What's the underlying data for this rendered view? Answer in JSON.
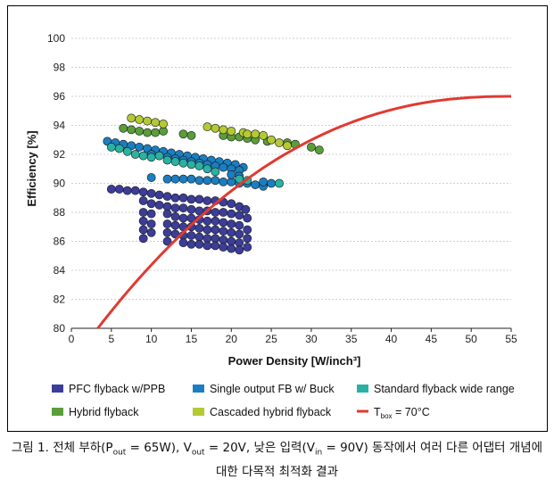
{
  "chart_data": {
    "type": "scatter",
    "xlabel": "Power Density [W/inch³]",
    "ylabel": "Efficiency [%]",
    "xlim": [
      0,
      55
    ],
    "ylim": [
      80,
      100
    ],
    "xticks": [
      0,
      5,
      10,
      15,
      20,
      25,
      30,
      35,
      40,
      45,
      50,
      55
    ],
    "yticks": [
      80,
      82,
      84,
      86,
      88,
      90,
      92,
      94,
      96,
      98,
      100
    ],
    "grid": "horizontal dotted",
    "legend_position": "bottom",
    "series": [
      {
        "name": "PFC flyback w/PPB",
        "color": "#3c3d99",
        "marker": "square",
        "points": [
          [
            5.0,
            89.6
          ],
          [
            6.0,
            89.6
          ],
          [
            7.0,
            89.5
          ],
          [
            8.0,
            89.5
          ],
          [
            9.0,
            89.4
          ],
          [
            10.0,
            89.3
          ],
          [
            11.0,
            89.2
          ],
          [
            12.0,
            89.1
          ],
          [
            13.0,
            89.0
          ],
          [
            14.0,
            89.0
          ],
          [
            15.0,
            88.9
          ],
          [
            16.0,
            88.9
          ],
          [
            17.0,
            88.8
          ],
          [
            18.0,
            88.8
          ],
          [
            19.0,
            88.7
          ],
          [
            20.0,
            88.6
          ],
          [
            21.0,
            88.4
          ],
          [
            21.8,
            88.2
          ],
          [
            9.0,
            88.8
          ],
          [
            10.0,
            88.6
          ],
          [
            11.0,
            88.5
          ],
          [
            12.0,
            88.4
          ],
          [
            13.0,
            88.3
          ],
          [
            14.0,
            88.3
          ],
          [
            15.0,
            88.2
          ],
          [
            16.0,
            88.1
          ],
          [
            17.0,
            88.1
          ],
          [
            18.0,
            88.0
          ],
          [
            19.0,
            88.0
          ],
          [
            20.0,
            87.9
          ],
          [
            21.0,
            87.8
          ],
          [
            22.0,
            87.6
          ],
          [
            9.0,
            88.0
          ],
          [
            9.0,
            87.4
          ],
          [
            9.0,
            86.8
          ],
          [
            9.0,
            86.2
          ],
          [
            10.0,
            87.9
          ],
          [
            10.0,
            87.2
          ],
          [
            10.0,
            86.6
          ],
          [
            12.0,
            87.9
          ],
          [
            12.0,
            87.2
          ],
          [
            12.0,
            86.6
          ],
          [
            12.0,
            86.0
          ],
          [
            13.0,
            87.7
          ],
          [
            13.0,
            87.1
          ],
          [
            13.0,
            86.5
          ],
          [
            14.0,
            87.6
          ],
          [
            14.0,
            87.0
          ],
          [
            14.0,
            86.4
          ],
          [
            14.0,
            85.9
          ],
          [
            15.0,
            87.6
          ],
          [
            15.0,
            87.0
          ],
          [
            15.0,
            86.4
          ],
          [
            15.0,
            85.8
          ],
          [
            16.0,
            87.5
          ],
          [
            16.0,
            86.9
          ],
          [
            16.0,
            86.3
          ],
          [
            16.0,
            85.8
          ],
          [
            17.0,
            87.4
          ],
          [
            17.0,
            86.8
          ],
          [
            17.0,
            86.2
          ],
          [
            17.0,
            85.7
          ],
          [
            18.0,
            87.4
          ],
          [
            18.0,
            86.8
          ],
          [
            18.0,
            86.2
          ],
          [
            18.0,
            85.7
          ],
          [
            19.0,
            87.3
          ],
          [
            19.0,
            86.7
          ],
          [
            19.0,
            86.1
          ],
          [
            19.0,
            85.6
          ],
          [
            20.0,
            87.2
          ],
          [
            20.0,
            86.6
          ],
          [
            20.0,
            86.0
          ],
          [
            20.0,
            85.5
          ],
          [
            21.0,
            87.1
          ],
          [
            21.0,
            86.5
          ],
          [
            21.0,
            85.9
          ],
          [
            21.0,
            85.4
          ],
          [
            22.0,
            86.8
          ],
          [
            22.0,
            86.2
          ],
          [
            22.0,
            85.6
          ]
        ]
      },
      {
        "name": "Single output FB w/ Buck",
        "color": "#1a7fc1",
        "marker": "square",
        "points": [
          [
            4.5,
            92.9
          ],
          [
            5.5,
            92.8
          ],
          [
            6.5,
            92.7
          ],
          [
            7.5,
            92.6
          ],
          [
            8.5,
            92.5
          ],
          [
            9.5,
            92.4
          ],
          [
            10.5,
            92.3
          ],
          [
            11.5,
            92.2
          ],
          [
            12.5,
            92.1
          ],
          [
            13.5,
            92.0
          ],
          [
            14.5,
            91.9
          ],
          [
            15.5,
            91.8
          ],
          [
            16.5,
            91.7
          ],
          [
            17.5,
            91.6
          ],
          [
            18.5,
            91.5
          ],
          [
            19.5,
            91.4
          ],
          [
            20.5,
            91.3
          ],
          [
            21.5,
            91.1
          ],
          [
            10.0,
            92.0
          ],
          [
            11.0,
            91.9
          ],
          [
            12.0,
            91.8
          ],
          [
            13.0,
            91.7
          ],
          [
            14.0,
            91.6
          ],
          [
            15.0,
            91.5
          ],
          [
            16.0,
            91.4
          ],
          [
            17.0,
            91.3
          ],
          [
            18.0,
            91.2
          ],
          [
            19.0,
            91.1
          ],
          [
            20.0,
            91.0
          ],
          [
            21.0,
            90.9
          ],
          [
            10.0,
            90.4
          ],
          [
            12.0,
            90.3
          ],
          [
            13.0,
            90.3
          ],
          [
            14.0,
            90.3
          ],
          [
            15.0,
            90.3
          ],
          [
            16.0,
            90.2
          ],
          [
            17.0,
            90.2
          ],
          [
            18.0,
            90.2
          ],
          [
            19.0,
            90.1
          ],
          [
            20.0,
            90.1
          ],
          [
            21.0,
            90.0
          ],
          [
            22.0,
            90.0
          ],
          [
            23.0,
            89.9
          ],
          [
            24.0,
            89.8
          ],
          [
            24.0,
            90.1
          ],
          [
            25.0,
            90.0
          ],
          [
            21.0,
            90.5
          ],
          [
            20.0,
            90.6
          ]
        ]
      },
      {
        "name": "Standard flyback wide range",
        "color": "#29b2a4",
        "marker": "square",
        "points": [
          [
            5.0,
            92.5
          ],
          [
            6.0,
            92.4
          ],
          [
            7.0,
            92.2
          ],
          [
            8.0,
            92.0
          ],
          [
            9.0,
            91.9
          ],
          [
            10.0,
            91.8
          ],
          [
            11.0,
            91.9
          ],
          [
            12.0,
            91.6
          ],
          [
            13.0,
            91.5
          ],
          [
            14.0,
            91.4
          ],
          [
            15.0,
            91.3
          ],
          [
            16.0,
            91.2
          ],
          [
            17.0,
            91.0
          ],
          [
            18.0,
            90.8
          ],
          [
            21.0,
            90.3
          ],
          [
            22.0,
            90.2
          ],
          [
            26.0,
            90.0
          ]
        ]
      },
      {
        "name": "Hybrid flyback",
        "color": "#5a9e3a",
        "marker": "square",
        "points": [
          [
            6.5,
            93.8
          ],
          [
            7.5,
            93.7
          ],
          [
            8.5,
            93.6
          ],
          [
            9.5,
            93.5
          ],
          [
            10.5,
            93.5
          ],
          [
            11.5,
            93.6
          ],
          [
            14.0,
            93.4
          ],
          [
            15.0,
            93.3
          ],
          [
            19.0,
            93.3
          ],
          [
            20.0,
            93.2
          ],
          [
            21.0,
            93.2
          ],
          [
            22.0,
            93.1
          ],
          [
            23.0,
            93.0
          ],
          [
            24.5,
            92.9
          ],
          [
            27.0,
            92.8
          ],
          [
            28.0,
            92.7
          ],
          [
            30.0,
            92.5
          ],
          [
            31.0,
            92.3
          ]
        ]
      },
      {
        "name": "Cascaded hybrid flyback",
        "color": "#b5c934",
        "marker": "square",
        "points": [
          [
            7.5,
            94.5
          ],
          [
            8.5,
            94.4
          ],
          [
            9.5,
            94.3
          ],
          [
            10.5,
            94.2
          ],
          [
            11.5,
            94.1
          ],
          [
            17.0,
            93.9
          ],
          [
            18.0,
            93.8
          ],
          [
            19.0,
            93.7
          ],
          [
            20.0,
            93.6
          ],
          [
            21.5,
            93.5
          ],
          [
            22.0,
            93.4
          ],
          [
            23.0,
            93.4
          ],
          [
            24.0,
            93.3
          ],
          [
            25.0,
            93.0
          ],
          [
            26.0,
            92.8
          ],
          [
            27.0,
            92.6
          ]
        ]
      },
      {
        "name": "Tbox = 70°C",
        "color": "#e03a31",
        "marker": "line",
        "curve": {
          "xstart": 3.3,
          "xpeak": 55,
          "ystart": 80,
          "ypeak": 96
        }
      }
    ]
  },
  "legend": {
    "pfc": "PFC flyback w/PPB",
    "single": "Single output FB w/ Buck",
    "standard": "Standard flyback wide range",
    "hybrid": "Hybrid flyback",
    "cascaded": "Cascaded hybrid flyback",
    "tbox_T": "T",
    "tbox_sub": "box",
    "tbox_rest": " = 70°C"
  },
  "caption": {
    "p1": "그림 1. 전체 부하(P",
    "sub1": "out",
    "p2": " = 65W), V",
    "sub2": "out",
    "p3": " = 20V, 낮은 입력(V",
    "sub3": "in",
    "p4": " = 90V) 동작에서 여러 다른 어댑터 개념에",
    "line2": "대한 다목적 최적화 결과"
  }
}
